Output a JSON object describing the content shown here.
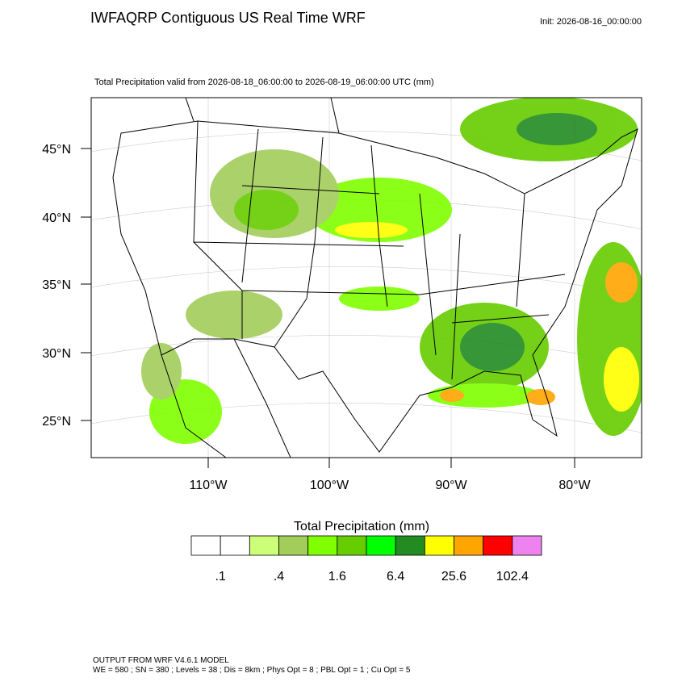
{
  "header": {
    "title": "IWFAQRP Contiguous US Real Time WRF",
    "init": "Init: 2026-08-16_00:00:00",
    "subtitle": "Total Precipitation valid from 2026-08-18_06:00:00 to 2026-08-19_06:00:00 UTC   (mm)"
  },
  "map": {
    "lat_labels": [
      "45°N",
      "40°N",
      "35°N",
      "30°N",
      "25°N"
    ],
    "lon_labels": [
      "110°W",
      "100°W",
      "90°W",
      "80°W"
    ]
  },
  "legend": {
    "title": "Total Precipitation  (mm)",
    "colors": [
      "#ffffff",
      "#ffffff",
      "#ccff77",
      "#a2cd5a",
      "#7fff00",
      "#66cd00",
      "#00ff00",
      "#228b22",
      "#ffff00",
      "#ffa500",
      "#ff0000",
      "#ee82ee"
    ],
    "labels": [
      ".1",
      ".4",
      "1.6",
      "6.4",
      "25.6",
      "102.4"
    ]
  },
  "footer": {
    "line1": "OUTPUT FROM WRF V4.6.1 MODEL",
    "line2": "WE = 580 ; SN = 380 ; Levels = 38 ; Dis = 8km ; Phys Opt = 8 ; PBL Opt = 1 ; Cu Opt = 5"
  }
}
